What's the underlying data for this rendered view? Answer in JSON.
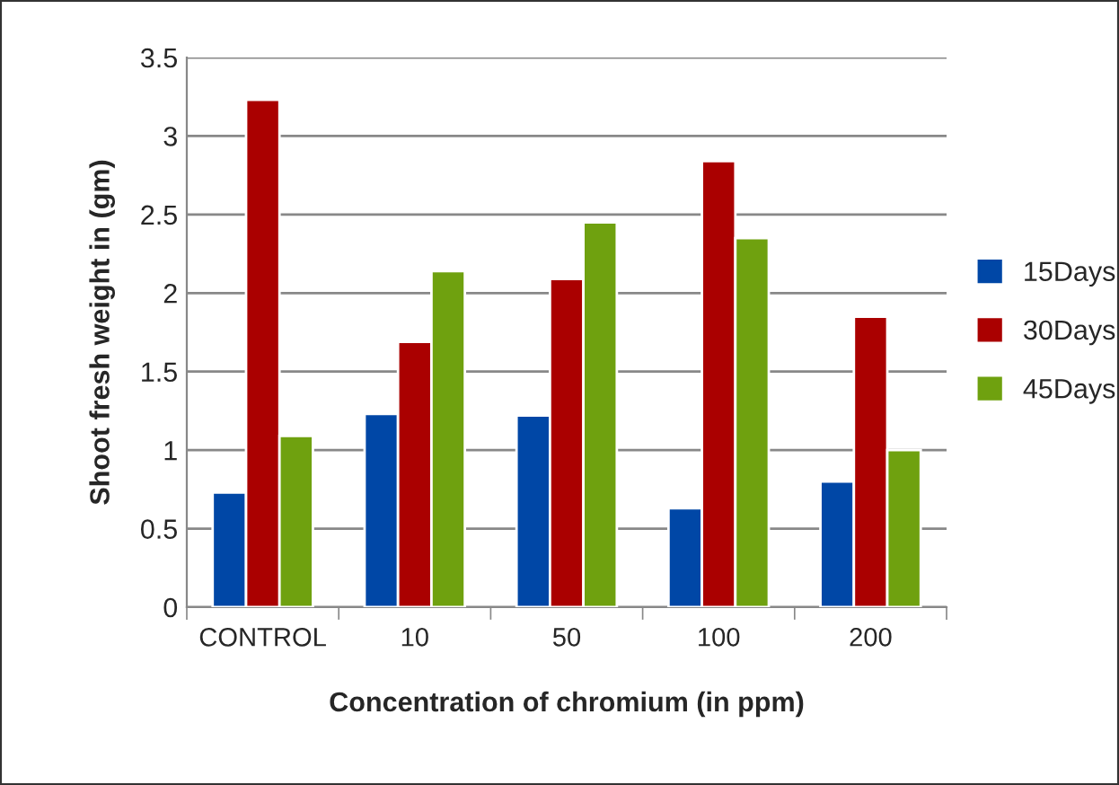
{
  "chart_data": {
    "type": "bar",
    "xlabel": "Concentration of chromium (in ppm)",
    "ylabel": "Shoot fresh weight in (gm)",
    "categories": [
      "CONTROL",
      "10",
      "50",
      "100",
      "200"
    ],
    "series": [
      {
        "name": "15Days",
        "color": "#0047a6",
        "values": [
          0.73,
          1.23,
          1.22,
          0.63,
          0.8
        ]
      },
      {
        "name": "30Days",
        "color": "#aa0000",
        "values": [
          3.23,
          1.69,
          2.09,
          2.84,
          1.85
        ]
      },
      {
        "name": "45Days",
        "color": "#6fa10f",
        "values": [
          1.09,
          2.14,
          2.45,
          2.35,
          1.0
        ]
      }
    ],
    "ylim": [
      0,
      3.5
    ],
    "yticks": [
      0,
      0.5,
      1,
      1.5,
      2,
      2.5,
      3,
      3.5
    ],
    "grid": "y",
    "legend": "right"
  }
}
